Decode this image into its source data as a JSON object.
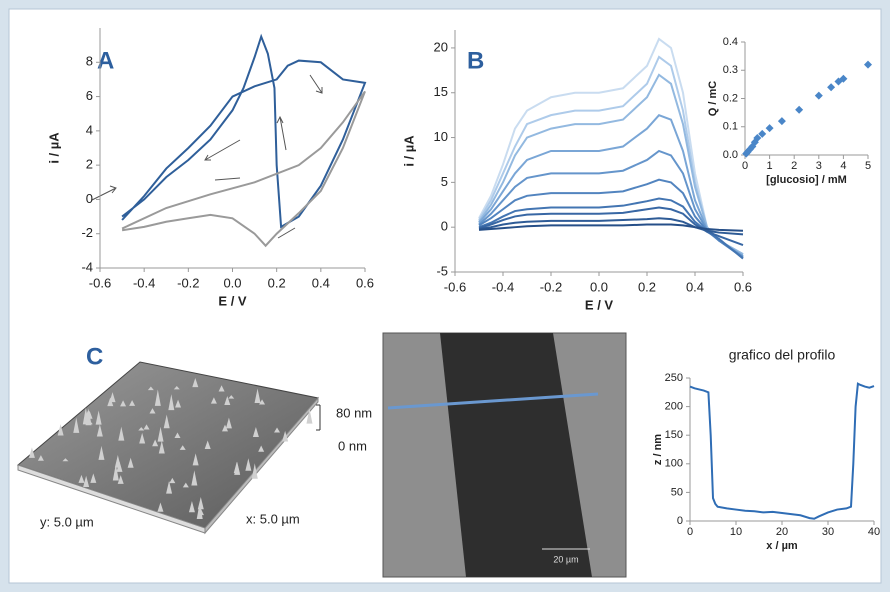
{
  "panels": [
    "A",
    "B",
    "C"
  ],
  "images": {
    "surface": {
      "z_max": "80 nm",
      "z_min": "0 nm",
      "x_size": "x: 5.0 µm",
      "y_size": "y: 5.0 µm"
    },
    "afm": {
      "scale_bar": "20 µm"
    }
  },
  "chart_data": [
    {
      "type": "line",
      "x_label": "E / V",
      "y_label": "i / µA",
      "xlim": [
        -0.6,
        0.6
      ],
      "ylim": [
        -4,
        10
      ],
      "xticks": [
        -0.6,
        -0.4,
        -0.2,
        {
          "value": 0,
          "label": "0.0"
        },
        0.2,
        0.4,
        0.6
      ],
      "yticks": [
        -4,
        -2,
        0,
        2,
        4,
        6,
        8
      ],
      "series": [
        {
          "color": "#2f5f9a",
          "x": [
            -0.5,
            -0.4,
            -0.3,
            -0.2,
            -0.1,
            0,
            0.05,
            0.1,
            0.13,
            0.16,
            0.19,
            0.2,
            0.22,
            0.3,
            0.4,
            0.5,
            0.6,
            0.5,
            0.4,
            0.3,
            0.25,
            0.2,
            0.1,
            0,
            -0.1,
            -0.2,
            -0.3,
            -0.4,
            -0.5
          ],
          "values": [
            -1.0,
            0.0,
            1.3,
            2.3,
            3.5,
            5.2,
            6.5,
            8.3,
            9.5,
            8.5,
            6.5,
            2.0,
            -1.6,
            -1.0,
            0.8,
            3.5,
            6.8,
            7.0,
            8.0,
            8.1,
            7.8,
            7.0,
            6.6,
            6.0,
            4.3,
            3.0,
            1.8,
            0.2,
            -1.2
          ]
        },
        {
          "color": "#9a9a9a",
          "x": [
            -0.5,
            -0.3,
            -0.1,
            0.1,
            0.3,
            0.4,
            0.5,
            0.6,
            0.5,
            0.4,
            0.3,
            0.2,
            0.15,
            0.1,
            0,
            -0.1,
            -0.2,
            -0.3,
            -0.4,
            -0.5
          ],
          "values": [
            -1.7,
            -0.5,
            0.3,
            1.0,
            2.0,
            3.0,
            4.5,
            6.3,
            3.0,
            0.5,
            -0.8,
            -2.0,
            -2.7,
            -2.0,
            -1.1,
            -0.9,
            -1.1,
            -1.3,
            -1.6,
            -1.8
          ]
        }
      ]
    },
    {
      "type": "line",
      "x_label": "E / V",
      "y_label": "i / µA",
      "xlim": [
        -0.6,
        0.6
      ],
      "ylim": [
        -5,
        22
      ],
      "xticks": [
        -0.6,
        -0.4,
        -0.2,
        {
          "value": 0,
          "label": "0.0"
        },
        0.2,
        0.4,
        0.6
      ],
      "yticks": [
        -5,
        0,
        5,
        10,
        15,
        20
      ],
      "x": [
        -0.5,
        -0.45,
        -0.4,
        -0.35,
        -0.3,
        -0.2,
        -0.1,
        0,
        0.1,
        0.2,
        0.25,
        0.3,
        0.35,
        0.4,
        0.45,
        0.5,
        0.6
      ],
      "series": [
        {
          "color": "#c9dcf0",
          "values": [
            1.0,
            3.5,
            7,
            11,
            13,
            14.5,
            15,
            15,
            15.5,
            18,
            21,
            20,
            15,
            6,
            0,
            -1.5,
            -3
          ]
        },
        {
          "color": "#aecbea",
          "values": [
            0.8,
            3,
            6,
            9,
            11.5,
            12.5,
            13,
            13,
            13.5,
            16,
            19,
            18,
            13,
            5,
            0,
            -1.5,
            -3
          ]
        },
        {
          "color": "#93b9e0",
          "values": [
            0.6,
            2.5,
            5,
            8,
            10,
            11,
            11.5,
            11.5,
            12,
            14.5,
            17,
            16,
            11.5,
            4.5,
            0,
            -1.5,
            -3
          ]
        },
        {
          "color": "#7aa6d6",
          "values": [
            0.5,
            2,
            4,
            6,
            7.5,
            8.5,
            8.5,
            8.5,
            9,
            11,
            12.5,
            12,
            8.5,
            3,
            -0.2,
            -1.5,
            -3.2
          ]
        },
        {
          "color": "#6595cb",
          "values": [
            0.3,
            1.5,
            3,
            4.5,
            5.5,
            6,
            6,
            6,
            6.3,
            7.5,
            8.5,
            8,
            6,
            2,
            -0.3,
            -1.5,
            -3.3
          ]
        },
        {
          "color": "#5284bf",
          "values": [
            0.2,
            1,
            2,
            3,
            3.5,
            3.8,
            3.8,
            3.8,
            4,
            4.8,
            5.3,
            5,
            3.8,
            1.2,
            -0.4,
            -1.5,
            -3.4
          ]
        },
        {
          "color": "#4375b2",
          "values": [
            0,
            0.5,
            1.2,
            1.8,
            2,
            2.2,
            2.2,
            2.2,
            2.4,
            2.9,
            3.2,
            3,
            2.3,
            0.6,
            -0.5,
            -1.3,
            -3.5
          ]
        },
        {
          "color": "#3867a4",
          "values": [
            -0.1,
            0.3,
            0.8,
            1.2,
            1.4,
            1.5,
            1.5,
            1.5,
            1.6,
            2,
            2.2,
            2,
            1.5,
            0.3,
            -0.5,
            -1,
            -2
          ]
        },
        {
          "color": "#2e5b96",
          "values": [
            -0.2,
            0,
            0.3,
            0.5,
            0.6,
            0.7,
            0.7,
            0.7,
            0.8,
            0.9,
            1.0,
            0.9,
            0.6,
            0,
            -0.4,
            -0.6,
            -0.8
          ]
        },
        {
          "color": "#264f88",
          "values": [
            -0.3,
            -0.2,
            -0.1,
            0,
            0.1,
            0.2,
            0.2,
            0.2,
            0.2,
            0.3,
            0.3,
            0.3,
            0.2,
            0,
            -0.2,
            -0.3,
            -0.4
          ]
        }
      ]
    },
    {
      "type": "scatter",
      "x_label": "[glucosio] / mM",
      "y_label": "Q / mC",
      "xlim": [
        0,
        5
      ],
      "ylim": [
        0,
        0.4
      ],
      "xticks": [
        0,
        1,
        2,
        3,
        4,
        5
      ],
      "yticks": [
        {
          "value": 0,
          "label": "0.0"
        },
        0.1,
        0.2,
        0.3,
        0.4
      ],
      "color": "#4a86c8",
      "x": [
        0.05,
        0.1,
        0.2,
        0.3,
        0.4,
        0.5,
        0.7,
        1,
        1.5,
        2.2,
        3,
        3.5,
        3.8,
        4,
        5
      ],
      "values": [
        0.005,
        0.01,
        0.02,
        0.03,
        0.045,
        0.06,
        0.075,
        0.095,
        0.12,
        0.16,
        0.21,
        0.24,
        0.26,
        0.27,
        0.32
      ]
    },
    {
      "type": "line",
      "title": "grafico del profilo",
      "x_label": "x / µm",
      "y_label": "z / nm",
      "xlim": [
        0,
        40
      ],
      "ylim": [
        0,
        250
      ],
      "xticks": [
        0,
        10,
        20,
        30,
        40
      ],
      "yticks": [
        0,
        50,
        100,
        150,
        200,
        250
      ],
      "x": [
        0,
        1,
        2,
        3,
        4,
        4.5,
        5,
        5.5,
        6,
        8,
        10,
        12,
        14,
        16,
        18,
        20,
        22,
        24,
        26,
        27,
        28,
        30,
        32,
        34,
        35,
        35.5,
        36,
        36.5,
        37,
        38,
        39,
        40
      ],
      "series": [
        {
          "color": "#2f6db5",
          "values": [
            235,
            232,
            230,
            228,
            225,
            150,
            40,
            30,
            25,
            22,
            20,
            18,
            17,
            15,
            16,
            14,
            12,
            10,
            5,
            4,
            8,
            15,
            20,
            22,
            25,
            100,
            200,
            240,
            238,
            235,
            233,
            236
          ]
        }
      ]
    }
  ]
}
